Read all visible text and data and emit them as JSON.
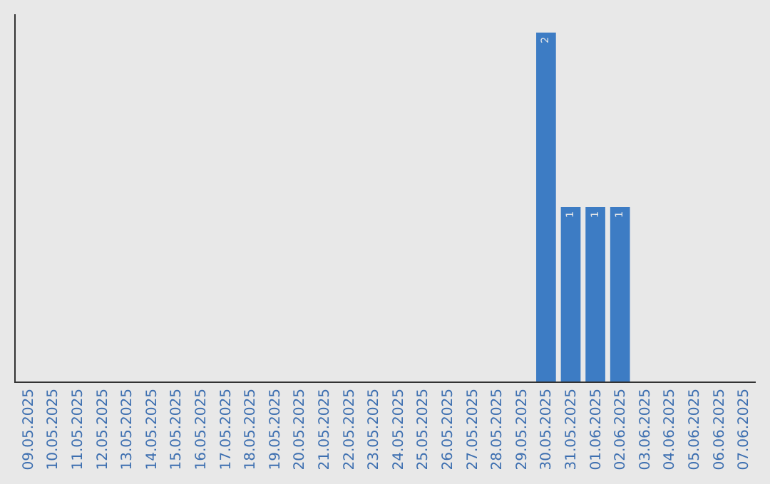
{
  "chart_data": {
    "type": "bar",
    "categories": [
      "09.05.2025",
      "10.05.2025",
      "11.05.2025",
      "12.05.2025",
      "13.05.2025",
      "14.05.2025",
      "15.05.2025",
      "16.05.2025",
      "17.05.2025",
      "18.05.2025",
      "19.05.2025",
      "20.05.2025",
      "21.05.2025",
      "22.05.2025",
      "23.05.2025",
      "24.05.2025",
      "25.05.2025",
      "26.05.2025",
      "27.05.2025",
      "28.05.2025",
      "29.05.2025",
      "30.05.2025",
      "31.05.2025",
      "01.06.2025",
      "02.06.2025",
      "03.06.2025",
      "04.06.2025",
      "05.06.2025",
      "06.06.2025",
      "07.06.2025"
    ],
    "values": [
      null,
      null,
      null,
      null,
      null,
      null,
      null,
      null,
      null,
      null,
      null,
      null,
      null,
      null,
      null,
      null,
      null,
      null,
      null,
      null,
      null,
      2,
      1,
      1,
      1,
      null,
      null,
      null,
      null,
      null
    ],
    "data_labels": true,
    "color": "#3d7cc4",
    "grid": false,
    "legend": false,
    "tick_labels": "x"
  }
}
